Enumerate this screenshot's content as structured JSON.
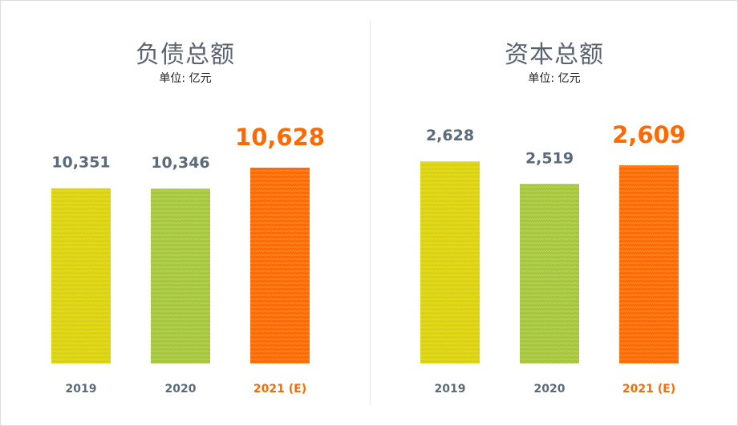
{
  "colors": {
    "bar_2019": "#dcd20a",
    "bar_2020": "#a6c63a",
    "bar_2021": "#ff6a00",
    "label_default": "#5b6b7a",
    "label_highlight": "#ff6a00"
  },
  "chart_data": [
    {
      "type": "bar",
      "title": "负债总额",
      "subtitle": "单位: 亿元",
      "categories": [
        "2019",
        "2020",
        "2021 (E)"
      ],
      "values": [
        10351,
        10346,
        10628
      ],
      "value_labels": [
        "10,351",
        "10,346",
        "10,628"
      ],
      "highlight_index": 2,
      "ylim": [
        8000,
        10800
      ],
      "grid": false
    },
    {
      "type": "bar",
      "title": "资本总额",
      "subtitle": "单位: 亿元",
      "categories": [
        "2019",
        "2020",
        "2021 (E)"
      ],
      "values": [
        2628,
        2519,
        2609
      ],
      "value_labels": [
        "2,628",
        "2,519",
        "2,609"
      ],
      "highlight_index": 2,
      "ylim": [
        1650,
        2660
      ],
      "grid": false
    }
  ]
}
